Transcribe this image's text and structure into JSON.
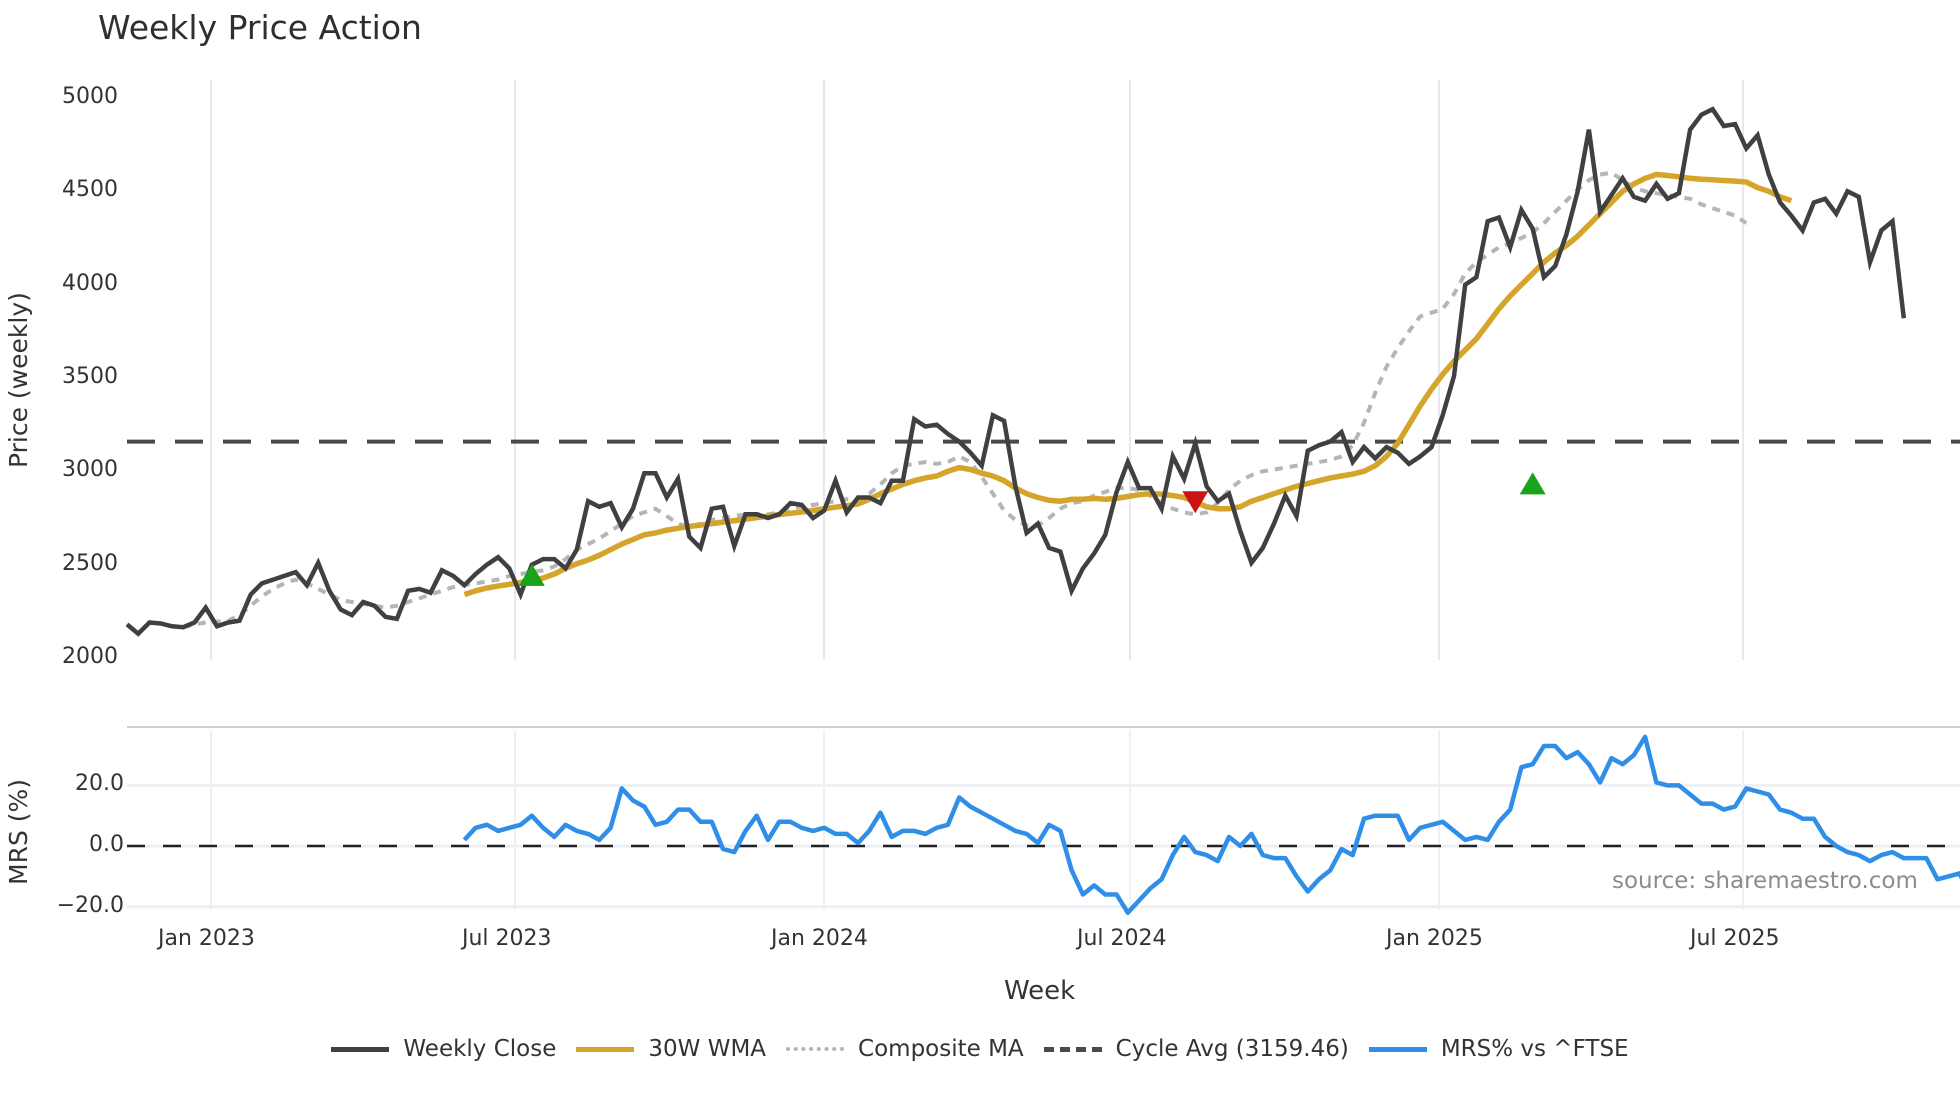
{
  "chart_data": {
    "type": "line",
    "title": "Weekly Price Action",
    "xlabel": "Week",
    "panels": [
      {
        "name": "price",
        "ylabel": "Price (weekly)",
        "ylim": [
          2000,
          5000
        ],
        "yticks": [
          "5000",
          "4500",
          "4000",
          "3500",
          "3000",
          "2500",
          "2000"
        ],
        "ytick_values": [
          5000,
          4500,
          4000,
          3500,
          3000,
          2500,
          2000
        ]
      },
      {
        "name": "mrs",
        "ylabel": "MRS (%)",
        "ylim": [
          -22,
          38
        ],
        "yticks": [
          "20.0",
          "0.0",
          "−20.0"
        ],
        "ytick_values": [
          20,
          0,
          -20
        ]
      }
    ],
    "xticks": [
      "Jan 2023",
      "Jul 2023",
      "Jan 2024",
      "Jul 2024",
      "Jan 2025",
      "Jul 2025"
    ],
    "x_start": "Nov 2022",
    "weeks": 164,
    "series": [
      {
        "name": "Weekly Close",
        "color": "#404040",
        "start_week": 0,
        "values": [
          2180,
          2130,
          2190,
          2185,
          2170,
          2165,
          2190,
          2270,
          2170,
          2190,
          2200,
          2340,
          2400,
          2420,
          2440,
          2460,
          2390,
          2510,
          2360,
          2260,
          2230,
          2300,
          2280,
          2220,
          2210,
          2360,
          2370,
          2350,
          2470,
          2440,
          2390,
          2450,
          2500,
          2540,
          2480,
          2340,
          2500,
          2530,
          2530,
          2480,
          2580,
          2840,
          2810,
          2830,
          2700,
          2800,
          2990,
          2990,
          2860,
          2960,
          2650,
          2590,
          2800,
          2810,
          2600,
          2770,
          2770,
          2750,
          2770,
          2830,
          2820,
          2750,
          2790,
          2950,
          2780,
          2860,
          2860,
          2830,
          2950,
          2950,
          3280,
          3240,
          3250,
          3200,
          3160,
          3100,
          3030,
          3300,
          3270,
          2920,
          2670,
          2720,
          2590,
          2570,
          2360,
          2480,
          2560,
          2660,
          2890,
          3050,
          2910,
          2910,
          2800,
          3080,
          2960,
          3150,
          2920,
          2840,
          2880,
          2680,
          2510,
          2590,
          2720,
          2870,
          2760,
          3110,
          3140,
          3160,
          3210,
          3050,
          3130,
          3070,
          3130,
          3100,
          3040,
          3080,
          3130,
          3300,
          3510,
          4000,
          4040,
          4340,
          4360,
          4200,
          4400,
          4300,
          4040,
          4100,
          4270,
          4500,
          4830,
          4390,
          4480,
          4570,
          4470,
          4450,
          4540,
          4460,
          4490,
          4830,
          4910,
          4940,
          4850,
          4860,
          4730,
          4800,
          4590,
          4440,
          4370,
          4290,
          4440,
          4460,
          4380,
          4500,
          4470,
          4120,
          4290,
          4340,
          3820
        ],
        "style": "solid",
        "width": 5
      },
      {
        "name": "30W WMA",
        "color": "#d4a52a",
        "start_week": 30,
        "values": [
          2340,
          2360,
          2375,
          2385,
          2395,
          2405,
          2415,
          2428,
          2450,
          2480,
          2505,
          2525,
          2550,
          2580,
          2610,
          2635,
          2660,
          2670,
          2685,
          2695,
          2705,
          2712,
          2720,
          2728,
          2736,
          2744,
          2752,
          2760,
          2768,
          2775,
          2782,
          2790,
          2800,
          2808,
          2816,
          2825,
          2850,
          2880,
          2905,
          2930,
          2950,
          2965,
          2975,
          3000,
          3020,
          3010,
          2990,
          2975,
          2950,
          2910,
          2880,
          2860,
          2845,
          2840,
          2850,
          2850,
          2855,
          2850,
          2855,
          2865,
          2875,
          2880,
          2878,
          2870,
          2860,
          2835,
          2810,
          2800,
          2800,
          2810,
          2840,
          2860,
          2880,
          2900,
          2920,
          2935,
          2950,
          2965,
          2975,
          2985,
          3000,
          3030,
          3080,
          3150,
          3250,
          3350,
          3440,
          3520,
          3590,
          3650,
          3710,
          3790,
          3870,
          3940,
          4000,
          4060,
          4120,
          4170,
          4210,
          4260,
          4320,
          4380,
          4440,
          4500,
          4540,
          4570,
          4590,
          4585,
          4578,
          4570,
          4565,
          4562,
          4558,
          4555,
          4550,
          4520,
          4500,
          4470,
          4450
        ],
        "style": "solid",
        "width": 6
      },
      {
        "name": "Composite MA",
        "color": "#b5b5b8",
        "start_week": 5,
        "values": [
          2165,
          2180,
          2190,
          2195,
          2200,
          2230,
          2280,
          2330,
          2370,
          2400,
          2420,
          2400,
          2370,
          2340,
          2310,
          2300,
          2290,
          2280,
          2270,
          2280,
          2300,
          2320,
          2340,
          2360,
          2380,
          2390,
          2400,
          2410,
          2420,
          2440,
          2450,
          2460,
          2470,
          2490,
          2530,
          2580,
          2610,
          2640,
          2680,
          2720,
          2760,
          2780,
          2800,
          2760,
          2720,
          2700,
          2720,
          2740,
          2750,
          2760,
          2770,
          2770,
          2770,
          2780,
          2800,
          2810,
          2820,
          2830,
          2840,
          2850,
          2850,
          2880,
          2930,
          2990,
          3030,
          3040,
          3050,
          3040,
          3050,
          3080,
          3050,
          2970,
          2880,
          2790,
          2740,
          2710,
          2710,
          2750,
          2800,
          2830,
          2840,
          2870,
          2890,
          2910,
          2910,
          2900,
          2870,
          2830,
          2800,
          2780,
          2770,
          2780,
          2830,
          2900,
          2950,
          2980,
          3000,
          3010,
          3020,
          3030,
          3040,
          3050,
          3060,
          3080,
          3140,
          3260,
          3420,
          3560,
          3660,
          3750,
          3830,
          3850,
          3870,
          3950,
          4060,
          4120,
          4160,
          4200,
          4220,
          4250,
          4280,
          4330,
          4390,
          4450,
          4510,
          4560,
          4590,
          4600,
          4560,
          4520,
          4500,
          4490,
          4480,
          4470,
          4460,
          4430,
          4410,
          4390,
          4370,
          4330
        ],
        "style": "dotted",
        "width": 4
      },
      {
        "name": "Cycle Avg (3159.46)",
        "color": "#4a4a4a",
        "value": 3159.46,
        "style": "dashed",
        "width": 4
      },
      {
        "name": "MRS% vs ^FTSE",
        "color": "#2e8ee8",
        "panel": "mrs",
        "start_week": 30,
        "values": [
          2,
          6,
          7,
          5,
          6,
          7,
          10,
          6,
          3,
          7,
          5,
          4,
          2,
          6,
          19,
          15,
          13,
          7,
          8,
          12,
          12,
          8,
          8,
          -1,
          -2,
          5,
          10,
          2,
          8,
          8,
          6,
          5,
          6,
          4,
          4,
          1,
          5,
          11,
          3,
          5,
          5,
          4,
          6,
          7,
          16,
          13,
          11,
          9,
          7,
          5,
          4,
          1,
          7,
          5,
          -8,
          -16,
          -13,
          -16,
          -16,
          -22,
          -18,
          -14,
          -11,
          -3,
          3,
          -2,
          -3,
          -5,
          3,
          0,
          4,
          -3,
          -4,
          -4,
          -10,
          -15,
          -11,
          -8,
          -1,
          -3,
          9,
          10,
          10,
          10,
          2,
          6,
          7,
          8,
          5,
          2,
          3,
          2,
          8,
          12,
          26,
          27,
          33,
          33,
          29,
          31,
          27,
          21,
          29,
          27,
          30,
          36,
          21,
          20,
          20,
          17,
          14,
          14,
          12,
          13,
          19,
          18,
          17,
          12,
          11,
          9,
          9,
          3,
          0,
          -2,
          -3,
          -5,
          -3,
          -2,
          -4,
          -4,
          -4,
          -11,
          -10,
          -9,
          -19
        ],
        "style": "solid",
        "width": 5
      }
    ],
    "markers": [
      {
        "type": "buy",
        "shape": "triangle-up",
        "color": "#18a318",
        "week": 36,
        "value": 2440
      },
      {
        "type": "sell",
        "shape": "triangle-down",
        "color": "#cc1414",
        "week": 95,
        "value": 2840
      },
      {
        "type": "buy",
        "shape": "triangle-up",
        "color": "#18a318",
        "week": 125,
        "value": 2930
      }
    ],
    "legend_position": "bottom-center",
    "grid": {
      "x": true,
      "y": false
    },
    "annotation": "source: sharemaestro.com"
  },
  "legend": [
    {
      "label": "Weekly Close",
      "color": "#404040",
      "style": "solid"
    },
    {
      "label": "30W WMA",
      "color": "#d4a52a",
      "style": "solid"
    },
    {
      "label": "Composite MA",
      "color": "#b5b5b8",
      "style": "dotted"
    },
    {
      "label": "Cycle Avg (3159.46)",
      "color": "#4a4a4a",
      "style": "dashed"
    },
    {
      "label": "MRS% vs ^FTSE",
      "color": "#2e8ee8",
      "style": "solid"
    }
  ]
}
